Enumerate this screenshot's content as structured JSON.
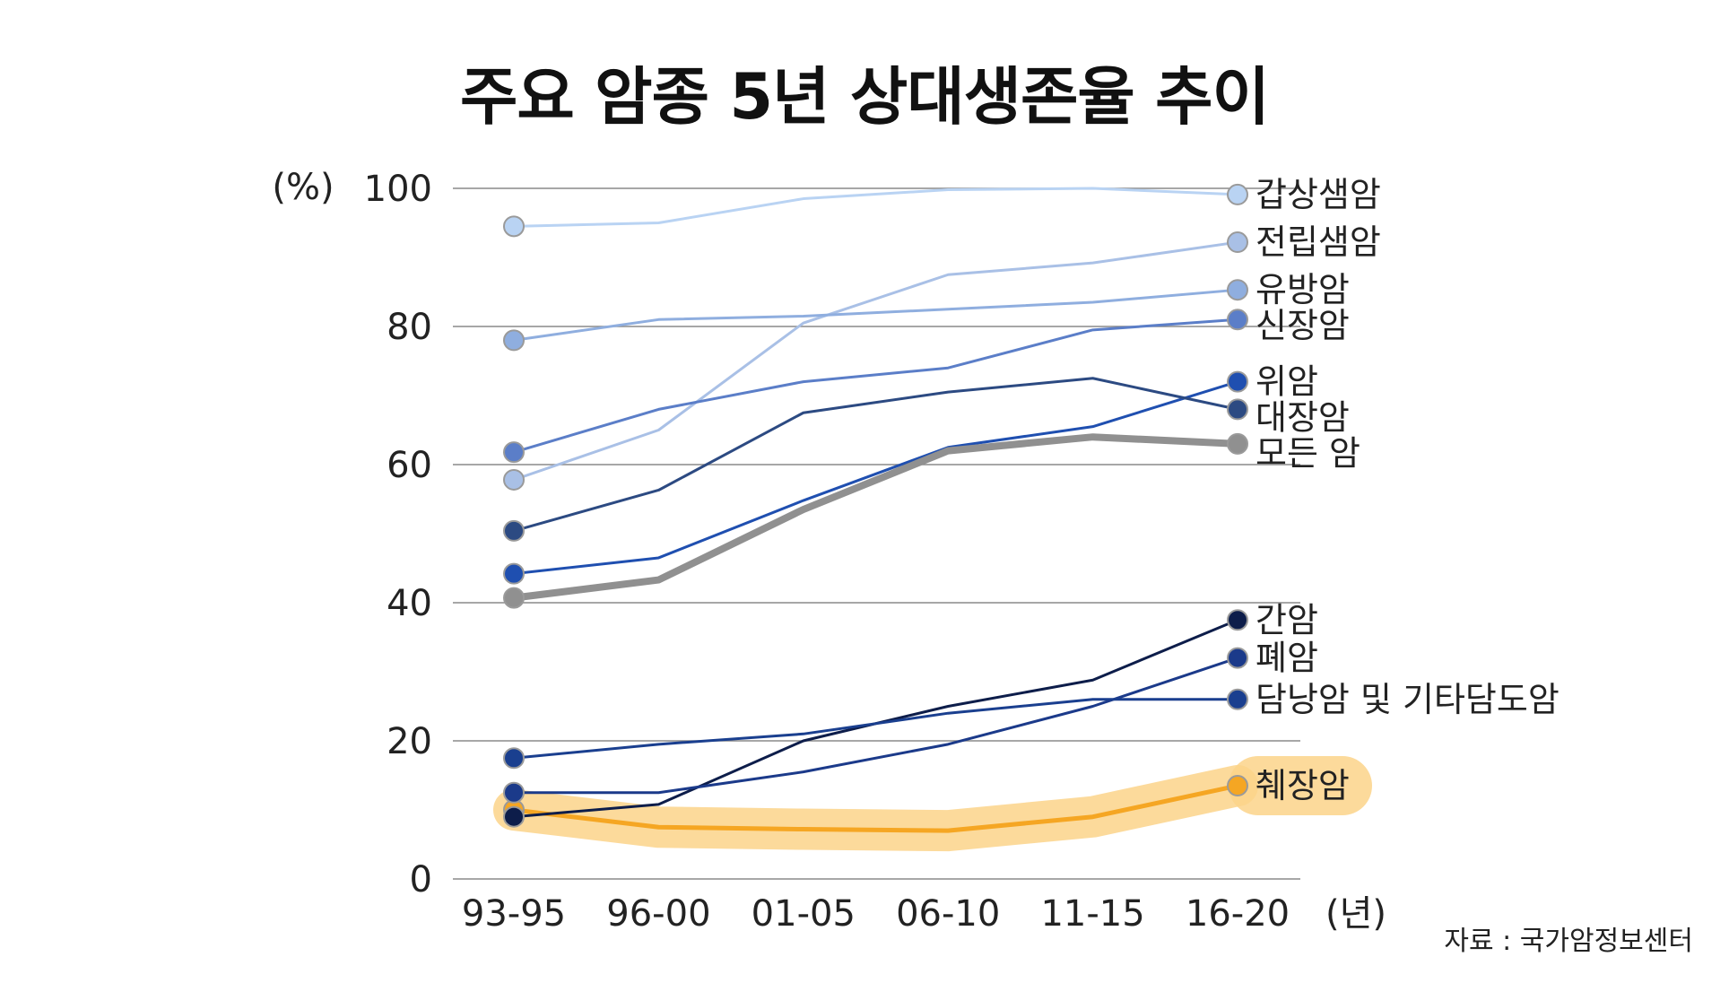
{
  "chart_data": {
    "type": "line",
    "title": "주요 암종 5년 상대생존율 추이",
    "ylabel": "(%)",
    "xlabel": "(년)",
    "ylim": [
      0,
      100
    ],
    "yticks": [
      0,
      20,
      40,
      60,
      80,
      100
    ],
    "categories": [
      "93-95",
      "96-00",
      "01-05",
      "06-10",
      "11-15",
      "16-20"
    ],
    "series": [
      {
        "name": "갑상샘암",
        "values": [
          94.5,
          95.0,
          98.5,
          99.8,
          100.0,
          99.1
        ],
        "color": "#b9d3f3",
        "width": 3,
        "highlight": false
      },
      {
        "name": "전립샘암",
        "values": [
          57.8,
          65.0,
          80.5,
          87.5,
          89.2,
          92.2
        ],
        "color": "#a9c0e6",
        "width": 3,
        "highlight": false
      },
      {
        "name": "유방암",
        "values": [
          78.0,
          81.0,
          81.5,
          82.5,
          83.5,
          85.3
        ],
        "color": "#8faedf",
        "width": 3,
        "highlight": false
      },
      {
        "name": "신장암",
        "values": [
          61.8,
          68.0,
          72.0,
          74.0,
          79.5,
          81.0
        ],
        "color": "#5b7ec8",
        "width": 3,
        "highlight": false
      },
      {
        "name": "위암",
        "values": [
          44.2,
          46.5,
          54.8,
          62.5,
          65.5,
          72.0
        ],
        "color": "#1f4fb0",
        "width": 3,
        "highlight": false
      },
      {
        "name": "대장암",
        "values": [
          50.4,
          56.3,
          67.5,
          70.5,
          72.5,
          68.0
        ],
        "color": "#2c4a82",
        "width": 3,
        "highlight": false
      },
      {
        "name": "모든 암",
        "values": [
          40.7,
          43.3,
          53.5,
          62.0,
          64.0,
          63.0
        ],
        "color": "#909090",
        "width": 8,
        "highlight": false
      },
      {
        "name": "간암",
        "values": [
          9.0,
          10.8,
          20.0,
          25.0,
          28.8,
          37.5
        ],
        "color": "#0d1d4a",
        "width": 3,
        "highlight": false
      },
      {
        "name": "폐암",
        "values": [
          12.5,
          12.5,
          15.5,
          19.5,
          25.0,
          32.0
        ],
        "color": "#1b3a8a",
        "width": 3,
        "highlight": false
      },
      {
        "name": "담낭암 및 기타담도암",
        "values": [
          17.5,
          19.5,
          21.0,
          24.0,
          26.0,
          26.0
        ],
        "color": "#1a3f8f",
        "width": 3,
        "highlight": false
      },
      {
        "name": "췌장암",
        "values": [
          10.0,
          7.5,
          7.2,
          7.0,
          9.0,
          13.5
        ],
        "color": "#f5a623",
        "width": 5,
        "highlight": true,
        "highlight_color": "#fcd38a"
      }
    ]
  },
  "source": "자료 : 국가암정보센터"
}
